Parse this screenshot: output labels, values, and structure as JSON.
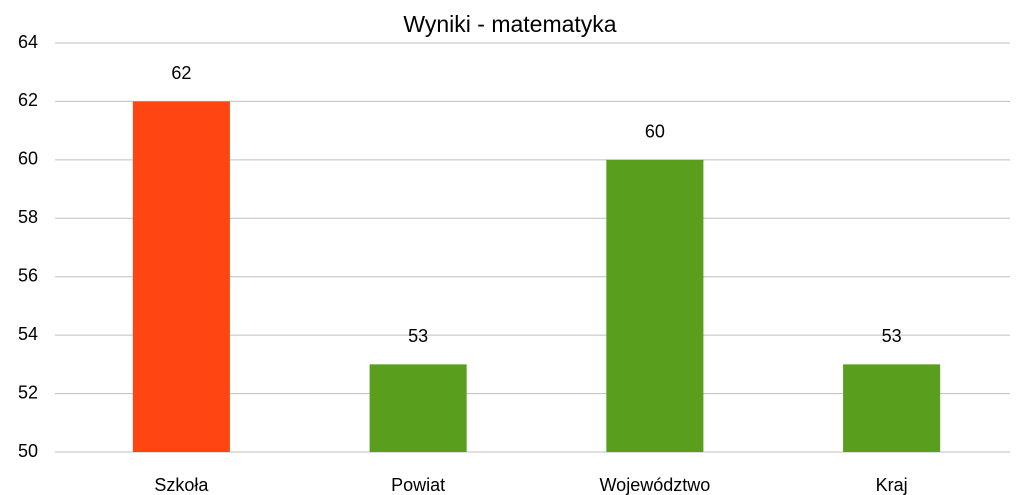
{
  "chart_data": {
    "type": "bar",
    "title": "Wyniki - matematyka",
    "categories": [
      "Szkoła",
      "Powiat",
      "Województwo",
      "Kraj"
    ],
    "values": [
      62,
      53,
      60,
      53
    ],
    "colors": [
      "#ff4612",
      "#5a9e1e",
      "#5a9e1e",
      "#5a9e1e"
    ],
    "ylim": [
      50,
      64
    ],
    "yticks": [
      50,
      52,
      54,
      56,
      58,
      60,
      62,
      64
    ],
    "grid": true
  }
}
